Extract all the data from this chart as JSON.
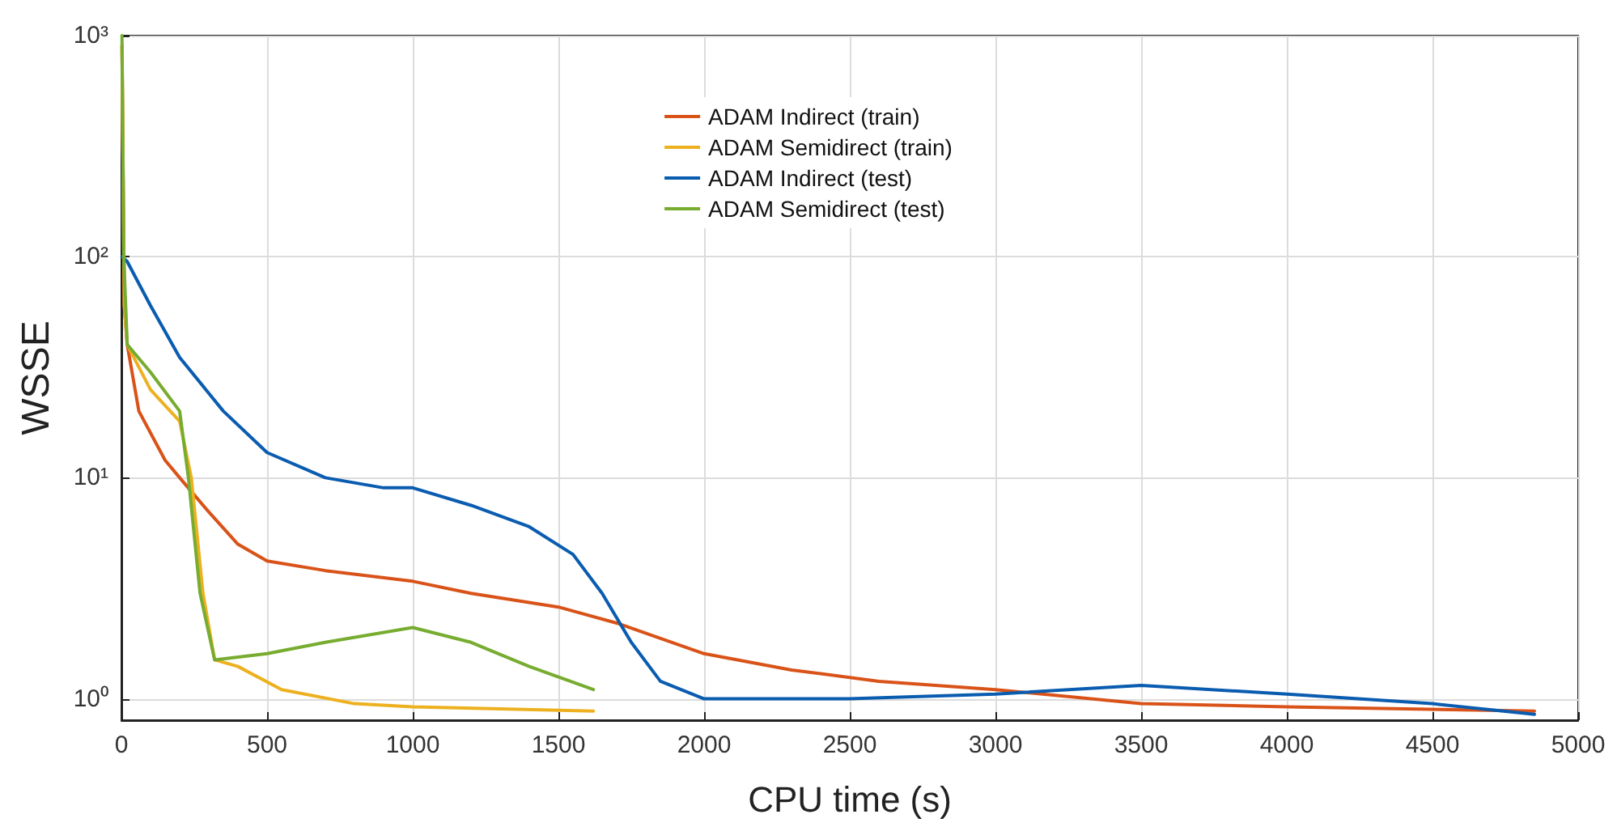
{
  "chart_data": {
    "type": "line",
    "xlabel": "CPU time (s)",
    "ylabel": "WSSE",
    "xlim": [
      0,
      5000
    ],
    "xticks": [
      0,
      500,
      1000,
      1500,
      2000,
      2500,
      3000,
      3500,
      4000,
      4500,
      5000
    ],
    "ylim": [
      0.8,
      1000
    ],
    "yticks": [
      {
        "value": 1,
        "label": "10⁰"
      },
      {
        "value": 10,
        "label": "10¹"
      },
      {
        "value": 100,
        "label": "10²"
      },
      {
        "value": 1000,
        "label": "10³"
      }
    ],
    "log": "y",
    "grid": true,
    "legend": "top",
    "marker": "none",
    "line_style": "solid",
    "series": [
      {
        "name": "ADAM Indirect (train)",
        "color": "#d95319",
        "x": [
          2,
          10,
          20,
          60,
          150,
          200,
          300,
          400,
          500,
          700,
          1000,
          1200,
          1500,
          1700,
          2000,
          2300,
          2600,
          3000,
          3500,
          4000,
          4850
        ],
        "values": [
          900,
          60,
          40,
          20,
          12,
          10,
          7,
          5,
          4.2,
          3.8,
          3.4,
          3.0,
          2.6,
          2.2,
          1.6,
          1.35,
          1.2,
          1.1,
          0.95,
          0.92,
          0.88
        ]
      },
      {
        "name": "ADAM Semidirect (train)",
        "color": "#edb120",
        "x": [
          2,
          10,
          20,
          100,
          200,
          240,
          280,
          320,
          400,
          550,
          800,
          1000,
          1300,
          1620
        ],
        "values": [
          900,
          60,
          40,
          25,
          18,
          10,
          3,
          1.5,
          1.4,
          1.1,
          0.95,
          0.92,
          0.9,
          0.88
        ]
      },
      {
        "name": "ADAM Indirect (test)",
        "color": "#0a5cb0",
        "x": [
          2,
          20,
          100,
          200,
          350,
          500,
          700,
          900,
          1000,
          1200,
          1400,
          1550,
          1650,
          1750,
          1850,
          2000,
          2500,
          3000,
          3500,
          4000,
          4500,
          4850
        ],
        "values": [
          100,
          95,
          60,
          35,
          20,
          13,
          10,
          9,
          9,
          7.5,
          6,
          4.5,
          3,
          1.8,
          1.2,
          1.0,
          1.0,
          1.05,
          1.15,
          1.05,
          0.95,
          0.85
        ]
      },
      {
        "name": "ADAM Semidirect (test)",
        "color": "#77ac30",
        "x": [
          2,
          8,
          20,
          100,
          200,
          230,
          270,
          320,
          500,
          700,
          1000,
          1200,
          1400,
          1620
        ],
        "values": [
          1000,
          100,
          40,
          30,
          20,
          10,
          3,
          1.5,
          1.6,
          1.8,
          2.1,
          1.8,
          1.4,
          1.1
        ]
      }
    ]
  }
}
